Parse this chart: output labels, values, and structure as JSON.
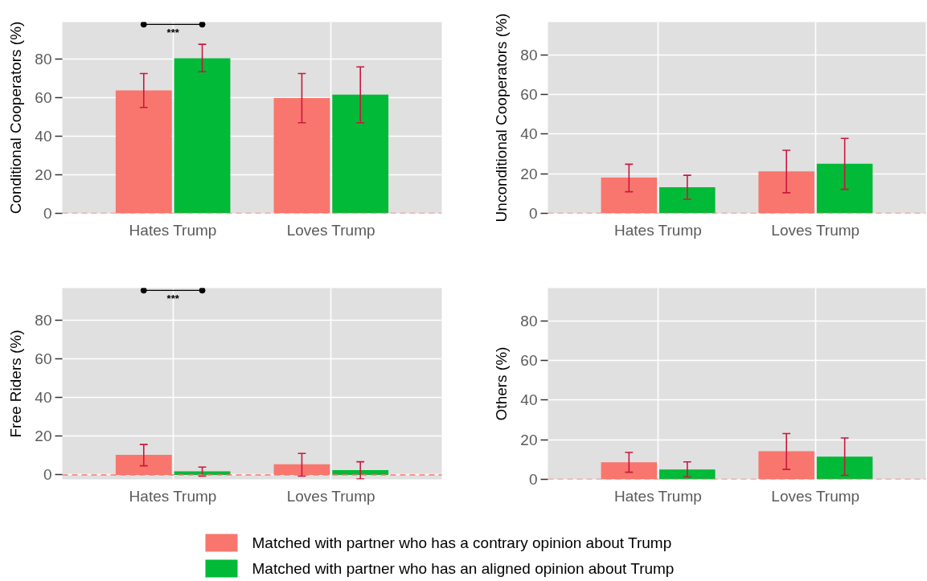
{
  "chart_data": [
    {
      "type": "bar",
      "categories": [
        "Hates Trump",
        "Loves Trump"
      ],
      "ylabel": "Conditional Cooperators (%)",
      "ylim": [
        0,
        99
      ],
      "yticks": [
        0,
        20,
        40,
        60,
        80
      ],
      "grid": true,
      "legend": "bottom",
      "series": [
        {
          "name": "Matched with partner who has a contrary opinion about Trump",
          "color": "#f8766d",
          "values": [
            63.6,
            59.7
          ],
          "errors": [
            [
              54.8,
              72.4
            ],
            [
              46.9,
              72.4
            ]
          ]
        },
        {
          "name": "Matched with partner who has an aligned opinion about Trump",
          "color": "#00ba38",
          "values": [
            80.3,
            61.5
          ],
          "errors": [
            [
              73.3,
              87.5
            ],
            [
              46.9,
              75.8
            ]
          ]
        }
      ],
      "ref_lines": [
        {
          "axis": "y",
          "value": 0,
          "color": "#f8766d",
          "line_style": "dashed"
        }
      ],
      "annotations": [
        "***"
      ]
    },
    {
      "type": "bar",
      "categories": [
        "Hates Trump",
        "Loves Trump"
      ],
      "ylabel": "Unconditional Cooperators (%)",
      "ylim": [
        0,
        96.5
      ],
      "yticks": [
        0,
        20,
        40,
        60,
        80
      ],
      "grid": true,
      "series": [
        {
          "color": "#f8766d",
          "values": [
            18.0,
            21.2
          ],
          "errors": [
            [
              10.9,
              24.8
            ],
            [
              10.4,
              31.8
            ]
          ]
        },
        {
          "color": "#00ba38",
          "values": [
            13.2,
            25.0
          ],
          "errors": [
            [
              7.1,
              19.2
            ],
            [
              12.1,
              37.8
            ]
          ]
        }
      ],
      "ref_lines": [
        {
          "axis": "y",
          "value": 0,
          "color": "#f8766d",
          "line_style": "dashed"
        }
      ]
    },
    {
      "type": "bar",
      "categories": [
        "Hates Trump",
        "Loves Trump"
      ],
      "ylabel": "Free Riders (%)",
      "ylim": [
        -2.3,
        96.5
      ],
      "yticks": [
        0,
        20,
        40,
        60,
        80
      ],
      "grid": true,
      "series": [
        {
          "color": "#f8766d",
          "values": [
            10.4,
            5.5
          ],
          "errors": [
            [
              4.7,
              15.7
            ],
            [
              -0.6,
              11.1
            ]
          ]
        },
        {
          "color": "#00ba38",
          "values": [
            1.8,
            2.5
          ],
          "errors": [
            [
              -0.6,
              4.0
            ],
            [
              -2.1,
              6.8
            ]
          ]
        }
      ],
      "ref_lines": [
        {
          "axis": "y",
          "value": 0,
          "color": "#f8766d",
          "line_style": "dashed"
        }
      ],
      "annotations": [
        "***"
      ]
    },
    {
      "type": "bar",
      "categories": [
        "Hates Trump",
        "Loves Trump"
      ],
      "ylabel": "Others (%)",
      "ylim": [
        0,
        96.5
      ],
      "yticks": [
        0,
        20,
        40,
        60,
        80
      ],
      "grid": true,
      "series": [
        {
          "color": "#f8766d",
          "values": [
            8.6,
            14.2
          ],
          "errors": [
            [
              3.6,
              13.6
            ],
            [
              5.0,
              23.1
            ]
          ]
        },
        {
          "color": "#00ba38",
          "values": [
            5.0,
            11.5
          ],
          "errors": [
            [
              1.2,
              8.8
            ],
            [
              2.0,
              20.9
            ]
          ]
        }
      ],
      "ref_lines": [
        {
          "axis": "y",
          "value": 0,
          "color": "#f8766d",
          "line_style": "dashed"
        }
      ]
    }
  ]
}
